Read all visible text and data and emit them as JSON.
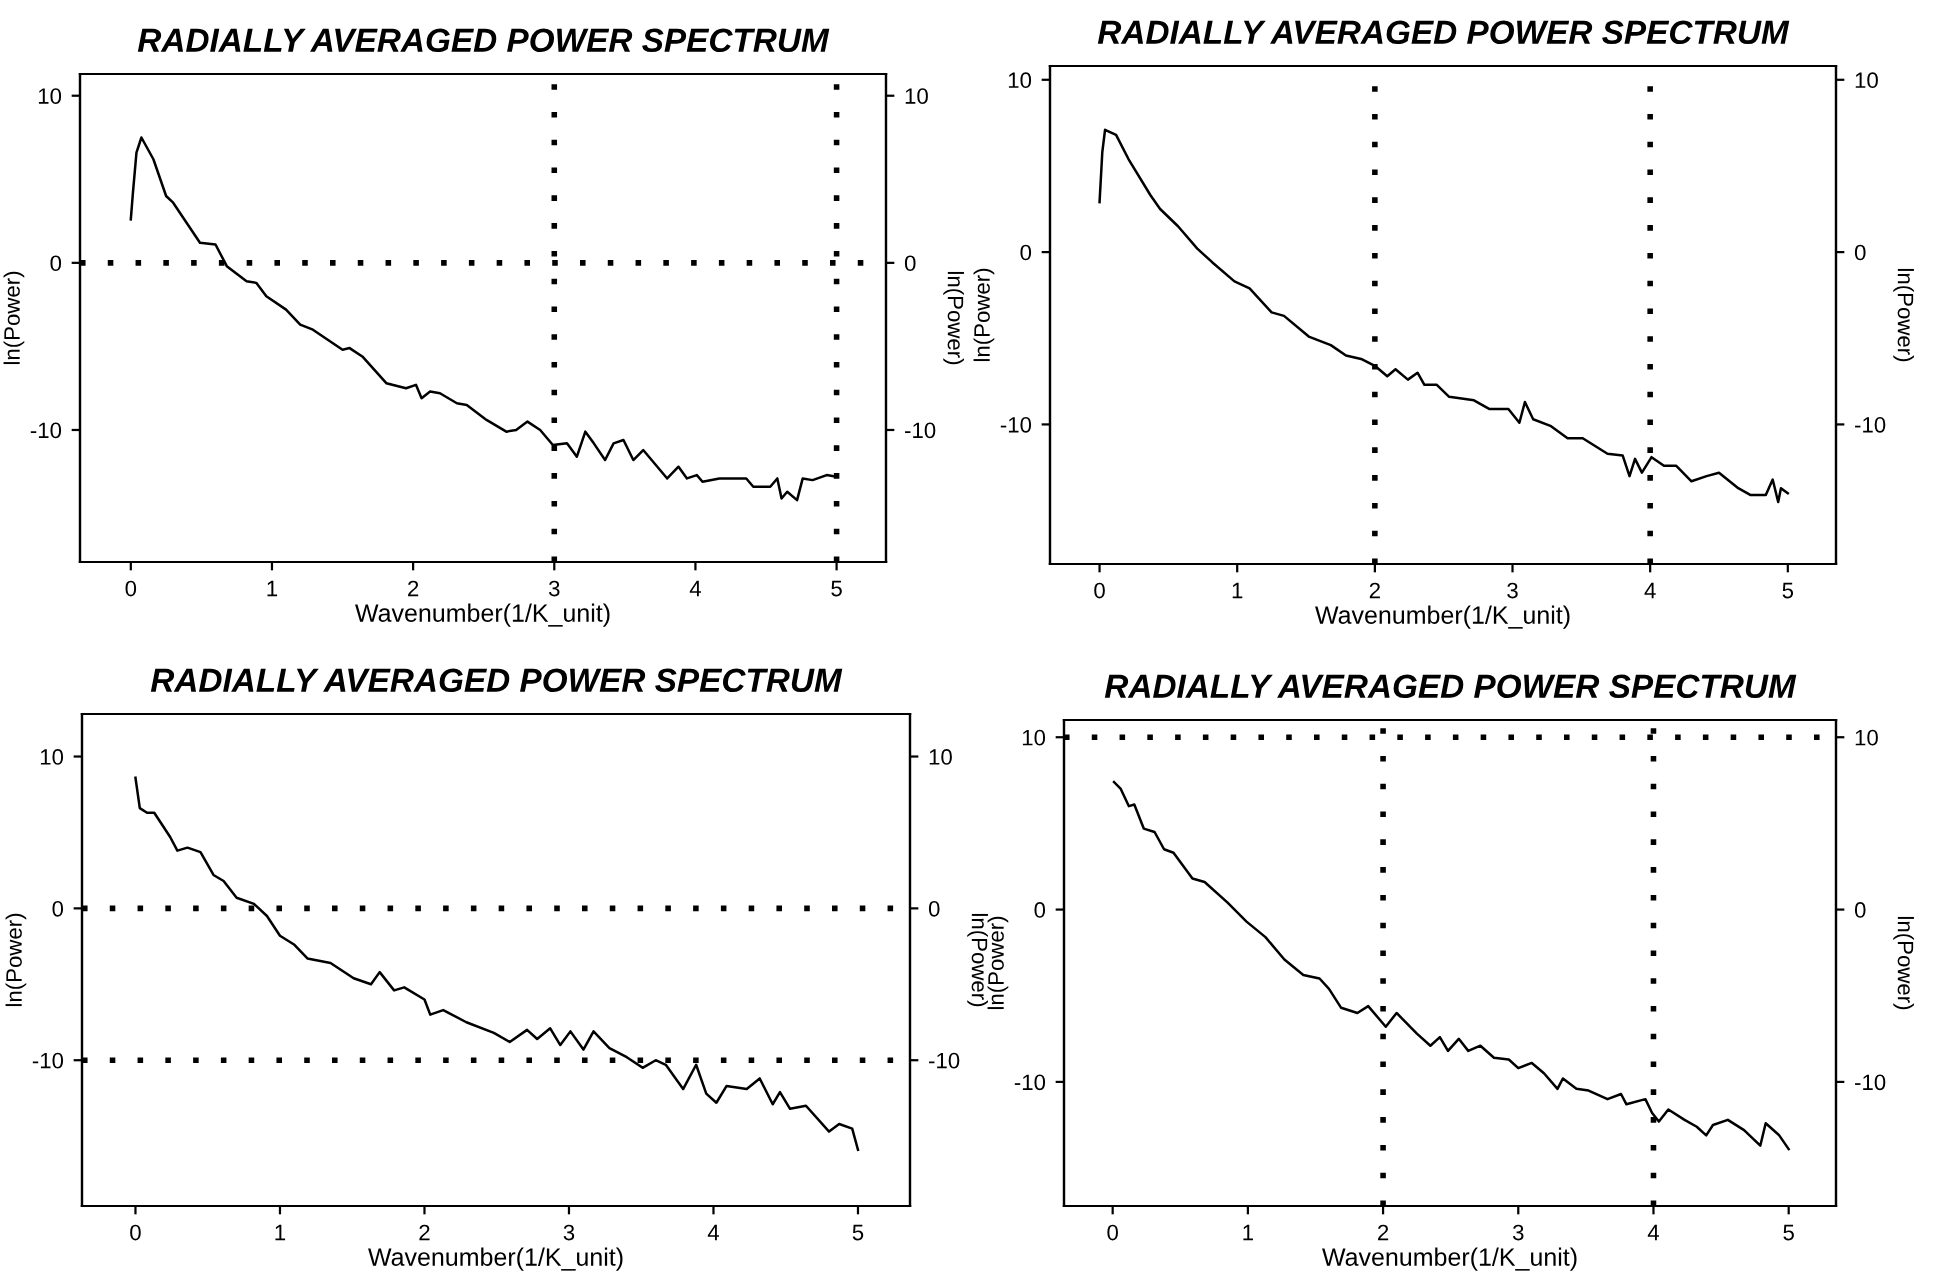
{
  "chart_data": [
    {
      "type": "line",
      "title": "RADIALLY AVERAGED POWER SPECTRUM",
      "xlabel": "Wavenumber(1/K_unit)",
      "ylabel": "ln(Power)",
      "y2label": "ln(Power)",
      "color": "#000000",
      "grid": false,
      "xlim": [
        -0.36,
        5.35
      ],
      "xticks": [
        0,
        1,
        2,
        3,
        4,
        5
      ],
      "ylim": [
        -17.9,
        11.3
      ],
      "yticks": [
        -10,
        0,
        10
      ],
      "y2lim": [
        -17.9,
        11.3
      ],
      "y2ticks": [
        -10,
        0,
        10
      ],
      "x": [
        0,
        0.015,
        0.04,
        0.075,
        0.16,
        0.25,
        0.3,
        0.49,
        0.6,
        0.68,
        0.82,
        0.89,
        0.96,
        1.1,
        1.2,
        1.29,
        1.5,
        1.55,
        1.64,
        1.81,
        1.95,
        2.02,
        2.06,
        2.12,
        2.19,
        2.31,
        2.38,
        2.52,
        2.66,
        2.73,
        2.81,
        2.9,
        2.99,
        3.09,
        3.16,
        3.22,
        3.28,
        3.36,
        3.42,
        3.49,
        3.56,
        3.63,
        3.8,
        3.88,
        3.94,
        4.01,
        4.05,
        4.17,
        4.36,
        4.41,
        4.53,
        4.58,
        4.61,
        4.65,
        4.72,
        4.76,
        4.83,
        4.93,
        5.0
      ],
      "values": [
        2.6,
        4.2,
        6.6,
        7.5,
        6.2,
        4.0,
        3.6,
        1.2,
        1.1,
        -0.2,
        -1.1,
        -1.2,
        -2.0,
        -2.8,
        -3.7,
        -4.0,
        -5.2,
        -5.1,
        -5.6,
        -7.2,
        -7.5,
        -7.3,
        -8.1,
        -7.7,
        -7.8,
        -8.4,
        -8.5,
        -9.4,
        -10.1,
        -10.0,
        -9.5,
        -10.0,
        -10.9,
        -10.8,
        -11.6,
        -10.1,
        -10.8,
        -11.8,
        -10.8,
        -10.6,
        -11.8,
        -11.2,
        -12.9,
        -12.2,
        -12.9,
        -12.7,
        -13.1,
        -12.9,
        -12.9,
        -13.4,
        -13.4,
        -12.9,
        -14.1,
        -13.7,
        -14.2,
        -12.9,
        -13.0,
        -12.7,
        -12.8
      ],
      "ref_lines": [
        {
          "axis": "x",
          "value": 3,
          "line_style": "dotted",
          "color": "#000000"
        },
        {
          "axis": "x",
          "value": 5,
          "line_style": "dotted",
          "color": "#000000"
        },
        {
          "axis": "y",
          "value": 0,
          "line_style": "dotted",
          "color": "#000000"
        }
      ]
    },
    {
      "type": "line",
      "title": "RADIALLY AVERAGED POWER SPECTRUM",
      "xlabel": "Wavenumber(1/K_unit)",
      "ylabel": "ln(Power)",
      "y2label": "ln(Power)",
      "color": "#000000",
      "grid": false,
      "xlim": [
        -0.36,
        5.35
      ],
      "xticks": [
        0,
        1,
        2,
        3,
        4,
        5
      ],
      "ylim": [
        -18.1,
        10.8
      ],
      "yticks": [
        -10,
        0,
        10
      ],
      "y2lim": [
        -18.1,
        10.8
      ],
      "y2ticks": [
        -10,
        0,
        10
      ],
      "x": [
        0,
        0.02,
        0.04,
        0.12,
        0.21,
        0.37,
        0.44,
        0.57,
        0.71,
        0.82,
        0.98,
        1.09,
        1.25,
        1.34,
        1.52,
        1.68,
        1.79,
        1.9,
        2.0,
        2.09,
        2.15,
        2.24,
        2.31,
        2.36,
        2.45,
        2.54,
        2.63,
        2.72,
        2.83,
        2.97,
        3.05,
        3.09,
        3.15,
        3.28,
        3.4,
        3.51,
        3.69,
        3.8,
        3.85,
        3.89,
        3.94,
        4.01,
        4.1,
        4.19,
        4.3,
        4.41,
        4.5,
        4.64,
        4.73,
        4.84,
        4.89,
        4.93,
        4.95,
        5.0
      ],
      "values": [
        2.9,
        5.8,
        7.1,
        6.8,
        5.4,
        3.3,
        2.5,
        1.5,
        0.2,
        -0.6,
        -1.7,
        -2.1,
        -3.5,
        -3.7,
        -4.9,
        -5.4,
        -6.0,
        -6.2,
        -6.6,
        -7.2,
        -6.8,
        -7.4,
        -7.0,
        -7.7,
        -7.7,
        -8.4,
        -8.5,
        -8.6,
        -9.1,
        -9.1,
        -9.9,
        -8.7,
        -9.7,
        -10.1,
        -10.8,
        -10.8,
        -11.7,
        -11.8,
        -13.0,
        -12.0,
        -12.8,
        -11.9,
        -12.4,
        -12.4,
        -13.3,
        -13.0,
        -12.8,
        -13.7,
        -14.1,
        -14.1,
        -13.2,
        -14.5,
        -13.7,
        -14.0
      ],
      "ref_lines": [
        {
          "axis": "x",
          "value": 2,
          "line_style": "dotted",
          "color": "#000000"
        },
        {
          "axis": "x",
          "value": 4,
          "line_style": "dotted",
          "color": "#000000"
        }
      ]
    },
    {
      "type": "line",
      "title": "RADIALLY AVERAGED POWER SPECTRUM",
      "xlabel": "Wavenumber(1/K_unit)",
      "ylabel": "ln(Power)",
      "y2label": "ln(Power)",
      "color": "#000000",
      "grid": false,
      "xlim": [
        -0.37,
        5.36
      ],
      "xticks": [
        0,
        1,
        2,
        3,
        4,
        5
      ],
      "ylim": [
        -19.6,
        12.8
      ],
      "yticks": [
        -10,
        0,
        10
      ],
      "y2lim": [
        -19.6,
        12.8
      ],
      "y2ticks": [
        -10,
        0,
        10
      ],
      "x": [
        0,
        0.03,
        0.08,
        0.13,
        0.24,
        0.29,
        0.36,
        0.45,
        0.54,
        0.61,
        0.7,
        0.82,
        0.91,
        1.0,
        1.1,
        1.19,
        1.35,
        1.51,
        1.63,
        1.69,
        1.79,
        1.86,
        2.0,
        2.04,
        2.13,
        2.29,
        2.48,
        2.59,
        2.71,
        2.78,
        2.87,
        2.94,
        3.01,
        3.1,
        3.17,
        3.28,
        3.4,
        3.51,
        3.6,
        3.67,
        3.79,
        3.88,
        3.95,
        4.02,
        4.09,
        4.23,
        4.32,
        4.41,
        4.46,
        4.53,
        4.64,
        4.8,
        4.87,
        4.96,
        5.0
      ],
      "values": [
        8.6,
        6.6,
        6.3,
        6.3,
        4.7,
        3.8,
        4.0,
        3.7,
        2.2,
        1.8,
        0.7,
        0.3,
        -0.5,
        -1.8,
        -2.4,
        -3.3,
        -3.6,
        -4.6,
        -5.0,
        -4.2,
        -5.4,
        -5.2,
        -6.0,
        -7.0,
        -6.7,
        -7.5,
        -8.2,
        -8.8,
        -8.0,
        -8.6,
        -7.9,
        -9.0,
        -8.1,
        -9.3,
        -8.1,
        -9.2,
        -9.8,
        -10.5,
        -10.0,
        -10.3,
        -11.9,
        -10.3,
        -12.2,
        -12.8,
        -11.7,
        -11.9,
        -11.2,
        -12.9,
        -12.1,
        -13.2,
        -13.0,
        -14.7,
        -14.2,
        -14.5,
        -15.9
      ],
      "ref_lines": [
        {
          "axis": "y",
          "value": 0,
          "line_style": "dotted",
          "color": "#000000"
        },
        {
          "axis": "y",
          "value": -10,
          "line_style": "dotted",
          "color": "#000000"
        }
      ]
    },
    {
      "type": "line",
      "title": "RADIALLY AVERAGED POWER SPECTRUM",
      "xlabel": "Wavenumber(1/K_unit)",
      "ylabel": "ln(Power)",
      "y2label": "ln(Power)",
      "color": "#000000",
      "grid": false,
      "xlim": [
        -0.36,
        5.35
      ],
      "xticks": [
        0,
        1,
        2,
        3,
        4,
        5
      ],
      "ylim": [
        -17.2,
        11.0
      ],
      "yticks": [
        -10,
        0,
        10
      ],
      "y2lim": [
        -17.2,
        11.0
      ],
      "y2ticks": [
        -10,
        0,
        10
      ],
      "x": [
        0.01,
        0.06,
        0.12,
        0.16,
        0.23,
        0.31,
        0.38,
        0.45,
        0.59,
        0.68,
        0.85,
        0.99,
        1.13,
        1.27,
        1.41,
        1.53,
        1.6,
        1.69,
        1.81,
        1.89,
        2.02,
        2.1,
        2.25,
        2.35,
        2.42,
        2.48,
        2.56,
        2.63,
        2.72,
        2.82,
        2.93,
        3.0,
        3.1,
        3.19,
        3.29,
        3.33,
        3.43,
        3.52,
        3.66,
        3.76,
        3.8,
        3.94,
        3.99,
        4.04,
        4.11,
        4.23,
        4.32,
        4.39,
        4.44,
        4.55,
        4.67,
        4.79,
        4.83,
        4.93,
        5.0
      ],
      "values": [
        7.4,
        7.0,
        6.0,
        6.1,
        4.7,
        4.5,
        3.5,
        3.3,
        1.8,
        1.6,
        0.4,
        -0.7,
        -1.6,
        -2.9,
        -3.8,
        -4.0,
        -4.6,
        -5.7,
        -6.0,
        -5.6,
        -6.8,
        -6.0,
        -7.2,
        -7.9,
        -7.4,
        -8.2,
        -7.5,
        -8.2,
        -7.9,
        -8.6,
        -8.7,
        -9.2,
        -8.9,
        -9.5,
        -10.4,
        -9.8,
        -10.4,
        -10.5,
        -11.0,
        -10.7,
        -11.3,
        -11.0,
        -11.8,
        -12.3,
        -11.6,
        -12.2,
        -12.6,
        -13.1,
        -12.5,
        -12.2,
        -12.8,
        -13.7,
        -12.4,
        -13.1,
        -13.9
      ],
      "ref_lines": [
        {
          "axis": "y",
          "value": 10,
          "line_style": "dotted",
          "color": "#000000"
        },
        {
          "axis": "x",
          "value": 2,
          "line_style": "dotted",
          "color": "#000000"
        },
        {
          "axis": "x",
          "value": 4,
          "line_style": "dotted",
          "color": "#000000"
        }
      ]
    }
  ]
}
